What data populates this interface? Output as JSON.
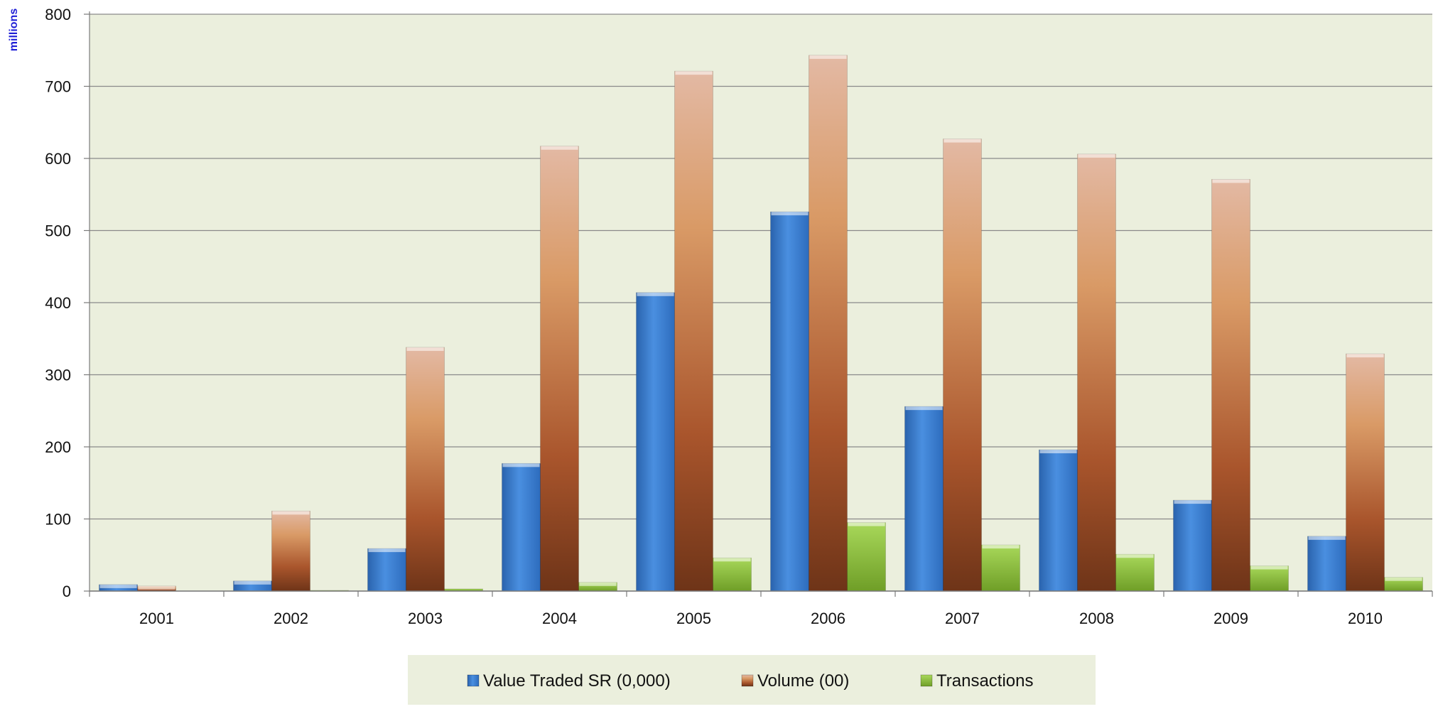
{
  "chart_data": {
    "type": "bar",
    "title": "",
    "xlabel": "",
    "ylabel": "millions",
    "ylim": [
      0,
      800
    ],
    "yticks": [
      0,
      100,
      200,
      300,
      400,
      500,
      600,
      700,
      800
    ],
    "grid": true,
    "legend_position": "bottom",
    "categories": [
      "2001",
      "2002",
      "2003",
      "2004",
      "2005",
      "2006",
      "2007",
      "2008",
      "2009",
      "2010"
    ],
    "series": [
      {
        "name": "Value Traded SR (0,000)",
        "color": "#3b7fd4",
        "values": [
          9,
          14,
          59,
          177,
          414,
          526,
          256,
          196,
          126,
          76
        ]
      },
      {
        "name": "Volume (00)",
        "color": "#c8784a",
        "values": [
          7,
          111,
          338,
          617,
          721,
          743,
          627,
          606,
          571,
          329
        ]
      },
      {
        "name": "Transactions",
        "color": "#8fbf3a",
        "values": [
          0,
          1,
          3,
          12,
          46,
          95,
          64,
          51,
          35,
          19
        ]
      }
    ]
  }
}
